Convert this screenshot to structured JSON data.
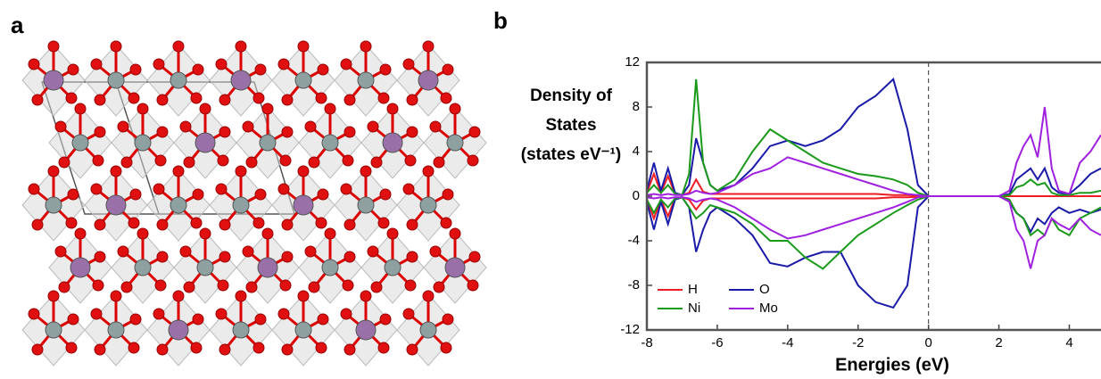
{
  "panels": [
    "a",
    "b"
  ],
  "chart_data": {
    "type": "line",
    "ylabel": [
      "Density of",
      "States",
      "(states eV⁻¹)"
    ],
    "xlabel": "Energies (eV)",
    "x": [
      -8,
      -7.8,
      -7.6,
      -7.4,
      -7.2,
      -7,
      -6.8,
      -6.6,
      -6.4,
      -6.2,
      -6,
      -5.5,
      -5,
      -4.5,
      -4,
      -3.5,
      -3,
      -2.5,
      -2,
      -1.5,
      -1,
      -0.6,
      -0.3,
      0,
      0.5,
      1,
      1.5,
      2,
      2.3,
      2.5,
      2.7,
      2.9,
      3.1,
      3.3,
      3.5,
      3.7,
      4,
      4.3,
      4.6,
      4.9
    ],
    "series": [
      {
        "name": "H",
        "color": "#ee1c24",
        "values": [
          0.3,
          2,
          0.3,
          1.8,
          0.2,
          0.1,
          0.3,
          1.5,
          0.4,
          0.2,
          0.2,
          0.2,
          0.2,
          0.2,
          0.2,
          0.2,
          0.2,
          0.2,
          0.2,
          0.2,
          0.1,
          0.1,
          0.05,
          0,
          0,
          0,
          0,
          0,
          0,
          0,
          0,
          0,
          0,
          0,
          0,
          0,
          0,
          0,
          0,
          0
        ],
        "values_down": [
          -0.3,
          -2,
          -0.3,
          -1.8,
          -0.2,
          -0.1,
          -0.3,
          -1.2,
          -0.4,
          -0.2,
          -0.2,
          -0.2,
          -0.2,
          -0.2,
          -0.2,
          -0.2,
          -0.2,
          -0.2,
          -0.2,
          -0.2,
          -0.1,
          -0.1,
          -0.05,
          0,
          0,
          0,
          0,
          0,
          0,
          0,
          0,
          0,
          0,
          0,
          0,
          0,
          0,
          0,
          0,
          0
        ]
      },
      {
        "name": "O",
        "color": "#1a1aa8",
        "values": [
          0.5,
          3,
          0.5,
          2.5,
          0.3,
          0.1,
          1,
          5.2,
          3,
          1,
          0.5,
          1,
          2.5,
          4.5,
          5,
          4.5,
          5,
          6,
          8,
          9,
          10.5,
          6,
          1,
          0,
          0,
          0,
          0,
          0,
          0.2,
          1.5,
          2,
          2.5,
          1.5,
          2.5,
          0.8,
          0.3,
          0.2,
          1,
          2,
          2.5
        ],
        "values_down": [
          -0.5,
          -3,
          -0.5,
          -2.5,
          -0.3,
          -0.1,
          -1,
          -5,
          -3,
          -1.5,
          -1,
          -2,
          -3.5,
          -6,
          -6.3,
          -5.5,
          -5,
          -5,
          -8,
          -9.5,
          -10,
          -8,
          -1,
          0,
          0,
          0,
          0,
          0,
          -0.5,
          -1.5,
          -2,
          -3.2,
          -2,
          -2.5,
          -1.5,
          -1,
          -1.5,
          -1.2,
          -1.5,
          -1.2
        ]
      },
      {
        "name": "Ni",
        "color": "#1a9a1a",
        "values": [
          0.3,
          1,
          0.3,
          1,
          0.2,
          0.1,
          2,
          10.5,
          3,
          1,
          0.5,
          1.5,
          4,
          6,
          5,
          4,
          3,
          2.5,
          2,
          1.8,
          1.5,
          1,
          0.3,
          0,
          0,
          0,
          0,
          0,
          0.1,
          0.8,
          1,
          1.5,
          1,
          1.2,
          0.3,
          0.1,
          0.1,
          0.3,
          0.3,
          0.5
        ],
        "values_down": [
          -0.3,
          -1.5,
          -0.3,
          -1,
          -0.2,
          -0.1,
          -1,
          -2,
          -1.5,
          -0.8,
          -1,
          -1.5,
          -2.5,
          -4,
          -4,
          -5.5,
          -6.5,
          -5,
          -3.5,
          -2.5,
          -1.5,
          -0.8,
          -0.3,
          0,
          0,
          0,
          0,
          0,
          -0.3,
          -1.5,
          -2,
          -3.5,
          -3,
          -3.5,
          -2,
          -3,
          -3.5,
          -2,
          -1.5,
          -1
        ]
      },
      {
        "name": "Mo",
        "color": "#a020e0",
        "values": [
          0.1,
          0.2,
          0.1,
          0.2,
          0.1,
          0.1,
          0.2,
          0.5,
          0.3,
          0.2,
          0.3,
          1,
          2,
          2.5,
          3.5,
          3,
          2.5,
          2,
          1.5,
          1,
          0.5,
          0.2,
          0.1,
          0,
          0,
          0,
          0,
          0,
          0.5,
          3,
          4.5,
          5.5,
          3.5,
          8,
          2.5,
          0.5,
          0.2,
          3,
          4,
          5.5
        ],
        "values_down": [
          -0.1,
          -0.2,
          -0.1,
          -0.2,
          -0.1,
          -0.1,
          -0.2,
          -0.5,
          -0.3,
          -0.2,
          -0.3,
          -1,
          -2,
          -3,
          -3.8,
          -3.5,
          -3,
          -2.5,
          -2,
          -1.5,
          -1,
          -0.5,
          -0.1,
          0,
          0,
          0,
          0,
          0,
          -0.5,
          -3,
          -4,
          -6.5,
          -4,
          -3.5,
          -2,
          -2.5,
          -3,
          -2,
          -3,
          -3.5
        ]
      }
    ],
    "xlim": [
      -8,
      4.9
    ],
    "ylim": [
      -12,
      12
    ],
    "xticks": [
      -8,
      -6,
      -4,
      -2,
      0,
      2,
      4
    ],
    "yticks": [
      -12,
      -8,
      -4,
      0,
      4,
      8,
      12
    ],
    "vline": 0,
    "legend": "lower left"
  }
}
